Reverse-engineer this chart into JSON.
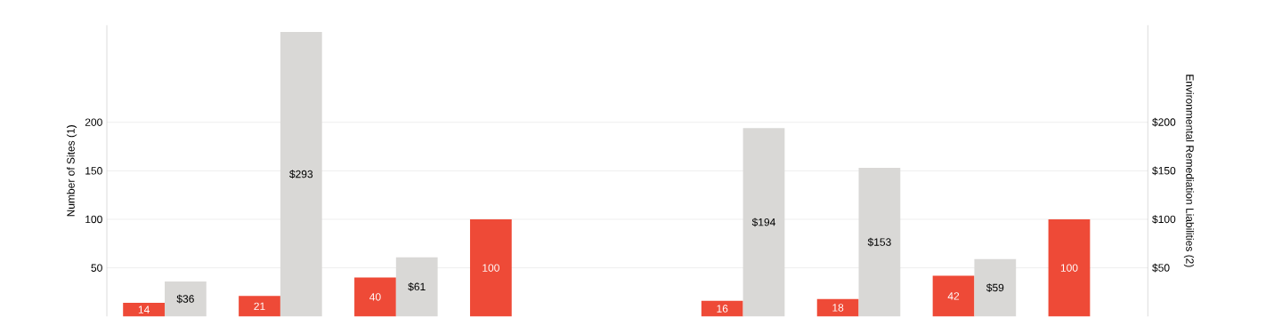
{
  "chart_data": {
    "type": "bar",
    "ylabel": "Number of Sites (1)",
    "y2label": "Environmental Remediation Liabilities (2)",
    "categories": [
      null,
      null,
      null,
      null,
      null,
      null,
      null,
      null,
      null
    ],
    "series": [
      {
        "color": "#ee4a37",
        "values": [
          14,
          21,
          40,
          100,
          null,
          16,
          18,
          42,
          100
        ],
        "value_labels": [
          "14",
          "21",
          "40",
          "100",
          null,
          "16",
          "18",
          "42",
          "100"
        ]
      },
      {
        "color": "#d9d8d6",
        "axis": "y2",
        "values": [
          36,
          293,
          61,
          null,
          null,
          194,
          153,
          59,
          null
        ],
        "value_labels": [
          "$36",
          "$293",
          "$61",
          null,
          null,
          "$194",
          "$153",
          "$59",
          null
        ]
      }
    ],
    "ylim": [
      0,
      300
    ],
    "yticks": [
      50,
      100,
      150,
      200
    ],
    "y2lim": [
      0,
      300
    ],
    "y2ticks": [
      {
        "value": 50,
        "label": "$50"
      },
      {
        "value": 100,
        "label": "$100"
      },
      {
        "value": 150,
        "label": "$150"
      },
      {
        "value": 200,
        "label": "$200"
      }
    ],
    "grid": "y"
  }
}
